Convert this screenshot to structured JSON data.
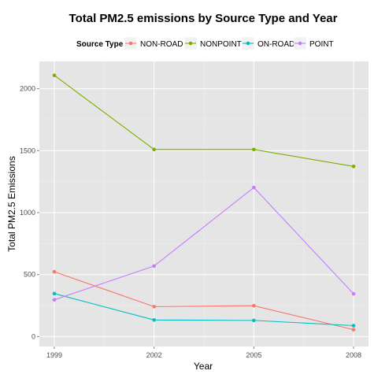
{
  "chart_data": {
    "type": "line",
    "title": "Total PM2.5 emissions by Source Type and Year",
    "xlabel": "Year",
    "ylabel": "Total PM2.5 Emissions",
    "x": [
      1999,
      2002,
      2005,
      2008
    ],
    "xticks": [
      "1999",
      "2002",
      "2005",
      "2008"
    ],
    "yticks": [
      0,
      500,
      1000,
      1500,
      2000
    ],
    "ylim": [
      -80,
      2220
    ],
    "grid": true,
    "legend": {
      "title": "Source Type",
      "position": "top"
    },
    "series": [
      {
        "name": "NON-ROAD",
        "color": "#F8766D",
        "values": [
          522.9,
          241.6,
          248.9,
          55.8
        ]
      },
      {
        "name": "NONPOINT",
        "color": "#7CAE00",
        "values": [
          2107.6,
          1509.5,
          1509.5,
          1373.2
        ]
      },
      {
        "name": "ON-ROAD",
        "color": "#00BFC4",
        "values": [
          346.8,
          134.3,
          130.4,
          88.3
        ]
      },
      {
        "name": "POINT",
        "color": "#C77CFF",
        "values": [
          296.8,
          569.3,
          1202.5,
          344.98
        ]
      }
    ]
  }
}
